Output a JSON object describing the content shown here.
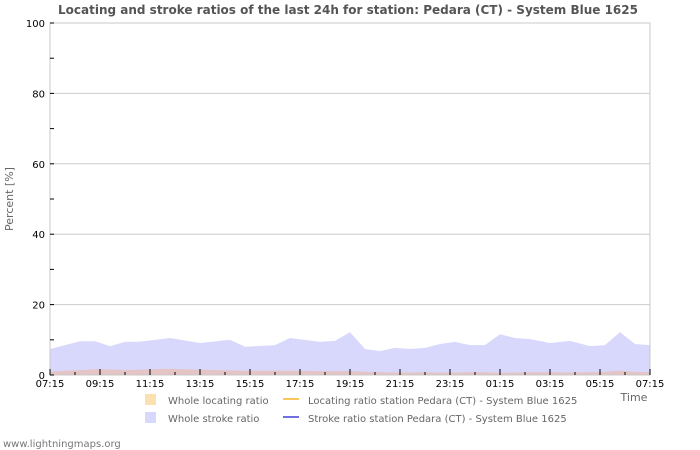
{
  "page": {
    "title": "Locating and stroke ratios of the last 24h for station: Pedara (CT) - System Blue 1625",
    "footer": "www.lightningmaps.org"
  },
  "colors": {
    "whole_locating_fill": "#fbe0b0",
    "whole_stroke_fill": "#d8d8fc",
    "locating_line": "#f8c860",
    "stroke_line": "#7070e0",
    "overlap_fill": "#e4c4c4",
    "grid": "#cccccc",
    "frame": "#c8c8c8"
  },
  "chart_data": {
    "type": "area",
    "title": "Locating and stroke ratios of the last 24h for station: Pedara (CT) - System Blue 1625",
    "xlabel": "Time",
    "ylabel": "Percent   [%]",
    "ylim": [
      0,
      100
    ],
    "yticks": [
      0,
      20,
      40,
      60,
      80,
      100
    ],
    "xticks": [
      "07:15",
      "09:15",
      "11:15",
      "13:15",
      "15:15",
      "17:15",
      "19:15",
      "21:15",
      "23:15",
      "01:15",
      "03:15",
      "05:15",
      "07:15"
    ],
    "grid": true,
    "legend_position": "bottom",
    "legend": [
      {
        "label": "Whole locating ratio",
        "kind": "area"
      },
      {
        "label": "Locating ratio station Pedara (CT) - System Blue 1625",
        "kind": "line"
      },
      {
        "label": "Whole stroke ratio",
        "kind": "area"
      },
      {
        "label": "Stroke ratio station Pedara (CT) - System Blue 1625",
        "kind": "line"
      }
    ],
    "x_hours_from_start": [
      0,
      1.2,
      1.8,
      2.4,
      3.0,
      3.6,
      4.8,
      6.0,
      7.2,
      7.8,
      9.0,
      9.6,
      10.8,
      11.4,
      12.0,
      12.6,
      13.2,
      13.8,
      14.4,
      15.0,
      15.6,
      16.2,
      16.8,
      17.4,
      18.0,
      18.6,
      19.2,
      20.0,
      20.8,
      21.6,
      22.2,
      22.8,
      23.4,
      24.0
    ],
    "series": [
      {
        "name": "Whole stroke ratio",
        "values": [
          7.4,
          9.6,
          9.6,
          8.2,
          9.4,
          9.5,
          10.5,
          9.1,
          10.0,
          8.0,
          8.5,
          10.5,
          9.4,
          9.7,
          12.2,
          7.4,
          6.8,
          7.7,
          7.4,
          7.7,
          8.8,
          9.4,
          8.5,
          8.5,
          11.6,
          10.5,
          10.2,
          9.1,
          9.7,
          8.2,
          8.5,
          12.2,
          8.8,
          8.5
        ]
      },
      {
        "name": "Whole locating ratio",
        "values": [
          1.0,
          1.4,
          1.6,
          1.6,
          1.4,
          1.5,
          1.8,
          1.5,
          1.3,
          1.2,
          1.2,
          1.2,
          1.1,
          1.1,
          1.1,
          0.9,
          0.8,
          0.7,
          0.7,
          0.8,
          0.7,
          0.7,
          0.8,
          0.8,
          0.6,
          0.7,
          0.8,
          0.8,
          0.7,
          0.8,
          0.9,
          1.2,
          0.9,
          0.8
        ]
      },
      {
        "name": "Locating ratio station Pedara (CT) - System Blue 1625",
        "values": []
      },
      {
        "name": "Stroke ratio station Pedara (CT) - System Blue 1625",
        "values": []
      }
    ]
  }
}
